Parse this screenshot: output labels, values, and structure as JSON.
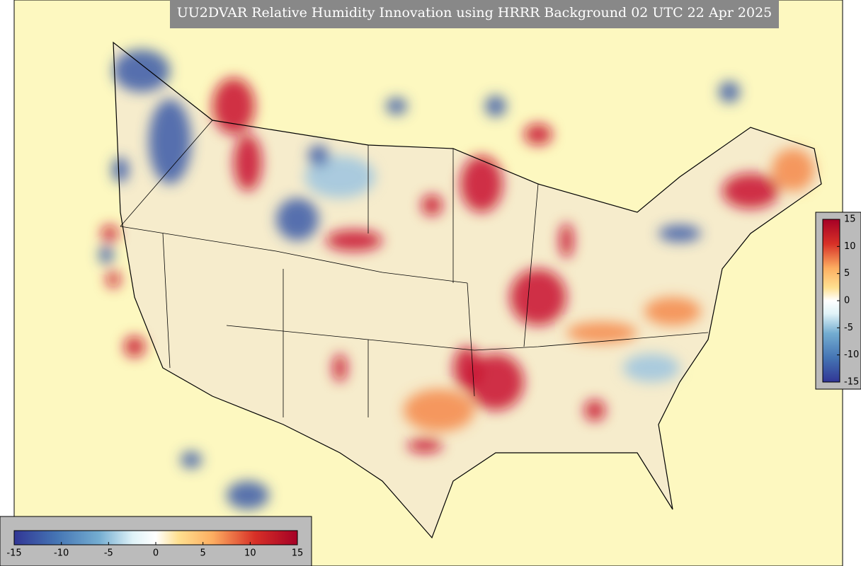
{
  "title": "UU2DVAR Relative Humidity Innovation using HRRR Background 02 UTC 22 Apr 2025",
  "colorbars": [
    {
      "orientation": "horizontal",
      "lim": [
        -15,
        15
      ],
      "ticks": [
        -15,
        -10,
        -5,
        0,
        5,
        10,
        15
      ]
    },
    {
      "orientation": "vertical",
      "lim": [
        -15,
        15
      ],
      "ticks": [
        -15,
        -10,
        -5,
        0,
        5,
        10,
        15
      ]
    }
  ]
}
